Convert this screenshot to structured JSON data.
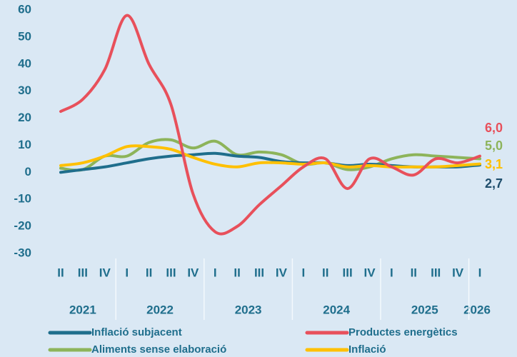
{
  "chart_data": {
    "type": "line",
    "categories": [
      "II",
      "III",
      "IV",
      "I",
      "II",
      "III",
      "IV",
      "I",
      "II",
      "III",
      "IV",
      "I",
      "II",
      "III",
      "IV",
      "I",
      "II",
      "III",
      "IV",
      "I"
    ],
    "years": [
      "2021",
      "2022",
      "2023",
      "2024",
      "2025",
      "2026"
    ],
    "ylim": [
      -30,
      60
    ],
    "yticks": [
      -30,
      -20,
      -10,
      0,
      10,
      20,
      30,
      40,
      50,
      60
    ],
    "grid": false,
    "series": [
      {
        "name": "Inflació subjacent",
        "color": "#1f6e8c",
        "values": [
          0,
          1,
          2,
          3.5,
          5,
          6,
          6.5,
          7,
          6,
          5.5,
          4,
          3.5,
          3.5,
          2.5,
          3,
          2.5,
          2,
          2,
          2,
          2.7
        ],
        "value_labels": [
          null,
          null,
          null,
          null,
          null,
          null,
          null,
          null,
          null,
          null,
          null,
          null,
          null,
          null,
          null,
          null,
          null,
          null,
          null,
          "2,7"
        ]
      },
      {
        "name": "Productes energètics",
        "color": "#e8505b",
        "values": [
          22.5,
          27,
          38,
          58,
          40,
          25,
          -8,
          -22,
          -20,
          -12,
          -5,
          2,
          5,
          -6,
          5,
          2,
          -1,
          5,
          3.5,
          6.0
        ],
        "value_labels": [
          null,
          null,
          null,
          null,
          null,
          null,
          null,
          null,
          null,
          null,
          null,
          null,
          null,
          null,
          null,
          null,
          null,
          null,
          null,
          "6,0"
        ]
      },
      {
        "name": "Aliments sense elaboració",
        "color": "#8db45a",
        "values": [
          1.5,
          1,
          6,
          6,
          11,
          12,
          9,
          11.5,
          6.5,
          7.5,
          6.5,
          3,
          3.5,
          1,
          2,
          5,
          6.5,
          6,
          5.5,
          5.0
        ],
        "value_labels": [
          null,
          null,
          null,
          null,
          null,
          null,
          null,
          null,
          null,
          null,
          null,
          null,
          null,
          null,
          null,
          null,
          null,
          null,
          null,
          "5,0"
        ]
      },
      {
        "name": "Inflació",
        "color": "#ffc000",
        "values": [
          2.5,
          3.5,
          6,
          9.5,
          9.5,
          8.5,
          5.5,
          3,
          2,
          3.5,
          3.5,
          3,
          3.5,
          2,
          2.5,
          2,
          2,
          2,
          2.5,
          3.1
        ],
        "value_labels": [
          null,
          null,
          null,
          null,
          null,
          null,
          null,
          null,
          null,
          null,
          null,
          null,
          null,
          null,
          null,
          null,
          null,
          null,
          null,
          "3,1"
        ]
      }
    ]
  }
}
